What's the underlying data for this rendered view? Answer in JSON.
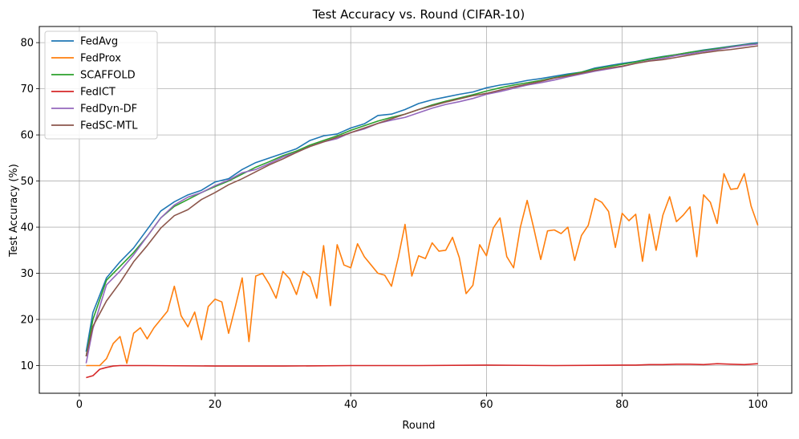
{
  "chart_data": {
    "type": "line",
    "title": "Test Accuracy vs. Round (CIFAR-10)",
    "xlabel": "Round",
    "ylabel": "Test Accuracy (%)",
    "xlim": [
      -5.9,
      105
    ],
    "ylim": [
      4.0,
      83.5
    ],
    "xticks": [
      0,
      20,
      40,
      60,
      80,
      100
    ],
    "yticks": [
      10,
      20,
      30,
      40,
      50,
      60,
      70,
      80
    ],
    "grid": true,
    "legend_position": "top-left",
    "series": [
      {
        "name": "FedAvg",
        "color": "#1f77b4",
        "x": [
          1,
          2,
          4,
          6,
          8,
          10,
          12,
          14,
          16,
          18,
          20,
          22,
          24,
          26,
          28,
          30,
          32,
          34,
          36,
          38,
          40,
          42,
          44,
          46,
          48,
          50,
          52,
          54,
          56,
          58,
          60,
          62,
          64,
          66,
          68,
          70,
          72,
          74,
          76,
          78,
          80,
          82,
          84,
          86,
          88,
          90,
          92,
          94,
          96,
          98,
          100
        ],
        "y": [
          13,
          21.5,
          29,
          32.5,
          35.5,
          39.5,
          43.5,
          45.5,
          47,
          48,
          49.8,
          50.5,
          52.5,
          54,
          55,
          56,
          57,
          58.8,
          59.8,
          60.2,
          61.5,
          62.4,
          64.2,
          64.5,
          65.5,
          66.8,
          67.6,
          68.2,
          68.8,
          69.3,
          70.2,
          70.8,
          71.2,
          71.8,
          72.2,
          72.7,
          73.2,
          73.6,
          74.5,
          75,
          75.5,
          75.9,
          76.5,
          77,
          77.4,
          77.9,
          78.4,
          78.8,
          79.2,
          79.6,
          80
        ]
      },
      {
        "name": "FedProx",
        "color": "#ff7f0e",
        "x": [
          1,
          2,
          3,
          4,
          5,
          6,
          7,
          8,
          9,
          10,
          11,
          12,
          13,
          14,
          15,
          16,
          17,
          18,
          19,
          20,
          21,
          22,
          23,
          24,
          25,
          26,
          27,
          28,
          29,
          30,
          31,
          32,
          33,
          34,
          35,
          36,
          37,
          38,
          39,
          40,
          41,
          42,
          43,
          44,
          45,
          46,
          47,
          48,
          49,
          50,
          51,
          52,
          53,
          54,
          55,
          56,
          57,
          58,
          59,
          60,
          61,
          62,
          63,
          64,
          65,
          66,
          67,
          68,
          69,
          70,
          71,
          72,
          73,
          74,
          75,
          76,
          77,
          78,
          79,
          80,
          81,
          82,
          83,
          84,
          85,
          86,
          87,
          88,
          89,
          90,
          91,
          92,
          93,
          94,
          95,
          96,
          97,
          98,
          99,
          100
        ],
        "y": [
          10,
          10,
          10,
          11.5,
          14.8,
          16.3,
          10.5,
          17,
          18.2,
          15.8,
          18.2,
          20,
          21.8,
          27.2,
          20.8,
          18.4,
          21.6,
          15.6,
          22.8,
          24.4,
          23.8,
          17,
          22.8,
          29,
          15.2,
          29.4,
          30,
          27.6,
          24.6,
          30.4,
          28.8,
          25.4,
          30.4,
          29.2,
          24.6,
          36,
          23,
          36.2,
          31.8,
          31.2,
          36.4,
          33.6,
          31.8,
          30,
          29.6,
          27.2,
          33.4,
          40.6,
          29.4,
          33.8,
          33.2,
          36.6,
          34.8,
          35,
          37.8,
          33.4,
          25.6,
          27.4,
          36.2,
          33.8,
          39.8,
          42,
          33.6,
          31.2,
          40,
          45.8,
          39.6,
          33,
          39.2,
          39.4,
          38.6,
          40,
          32.8,
          38.2,
          40.4,
          46.2,
          45.4,
          43.4,
          35.6,
          43,
          41.4,
          42.8,
          32.6,
          42.8,
          35,
          42.6,
          46.6,
          41.2,
          42.6,
          44.4,
          33.6,
          47,
          45.4,
          40.8,
          51.6,
          48.2,
          48.4,
          51.6,
          44.6,
          40.4
        ]
      },
      {
        "name": "SCAFFOLD",
        "color": "#2ca02c",
        "x": [
          1,
          2,
          4,
          6,
          8,
          10,
          12,
          14,
          16,
          18,
          20,
          22,
          24,
          26,
          28,
          30,
          32,
          34,
          36,
          38,
          40,
          42,
          44,
          46,
          48,
          50,
          52,
          54,
          56,
          58,
          60,
          62,
          64,
          66,
          68,
          70,
          72,
          74,
          76,
          78,
          80,
          82,
          84,
          86,
          88,
          90,
          92,
          94,
          96,
          98,
          100
        ],
        "y": [
          12,
          20,
          28.5,
          31.5,
          34.5,
          38,
          42,
          44.5,
          46,
          47.5,
          48.8,
          50,
          51.5,
          53,
          54.2,
          55.5,
          56.5,
          57.8,
          58.8,
          59.8,
          61,
          62,
          63,
          63.8,
          64.5,
          65.5,
          66.5,
          67.3,
          68,
          68.7,
          69.5,
          70.2,
          70.8,
          71.3,
          71.8,
          72.4,
          73,
          73.6,
          74.3,
          74.8,
          75.3,
          75.8,
          76.4,
          76.9,
          77.4,
          77.9,
          78.3,
          78.7,
          79.1,
          79.5,
          79.8
        ]
      },
      {
        "name": "FedICT",
        "color": "#d62728",
        "x": [
          1,
          2,
          3,
          4,
          5,
          6,
          8,
          10,
          20,
          30,
          40,
          50,
          60,
          70,
          80,
          82,
          84,
          86,
          88,
          90,
          92,
          94,
          96,
          98,
          100
        ],
        "y": [
          7.4,
          7.8,
          9.2,
          9.6,
          9.9,
          10,
          10,
          10,
          9.9,
          9.9,
          10,
          10,
          10.1,
          10,
          10.1,
          10.1,
          10.2,
          10.2,
          10.3,
          10.3,
          10.2,
          10.4,
          10.3,
          10.2,
          10.4
        ]
      },
      {
        "name": "FedDyn-DF",
        "color": "#9467bd",
        "x": [
          1,
          2,
          4,
          6,
          8,
          10,
          12,
          14,
          16,
          18,
          20,
          22,
          24,
          26,
          28,
          30,
          32,
          34,
          36,
          38,
          40,
          42,
          44,
          46,
          48,
          50,
          52,
          54,
          56,
          58,
          60,
          62,
          64,
          66,
          68,
          70,
          72,
          74,
          76,
          78,
          80,
          82,
          84,
          86,
          88,
          90,
          92,
          94,
          96,
          98,
          100
        ],
        "y": [
          10.5,
          18,
          27.5,
          30.5,
          34,
          38,
          42,
          44.8,
          46.5,
          47.5,
          49,
          50.2,
          51.8,
          52.5,
          53.8,
          55.2,
          56.2,
          57.5,
          58.5,
          59.2,
          60.5,
          61.3,
          62.5,
          63.2,
          63.8,
          64.8,
          65.8,
          66.6,
          67.2,
          67.9,
          68.8,
          69.4,
          70.1,
          70.8,
          71.3,
          71.9,
          72.6,
          73.2,
          73.8,
          74.3,
          74.8,
          75.5,
          76.1,
          76.6,
          77.2,
          77.6,
          78.1,
          78.5,
          79,
          79.4,
          79.7
        ]
      },
      {
        "name": "FedSC-MTL",
        "color": "#8c564b",
        "x": [
          1,
          2,
          4,
          6,
          8,
          10,
          12,
          14,
          16,
          18,
          20,
          22,
          24,
          26,
          28,
          30,
          32,
          34,
          36,
          38,
          40,
          42,
          44,
          46,
          48,
          50,
          52,
          54,
          56,
          58,
          60,
          62,
          64,
          66,
          68,
          70,
          72,
          74,
          76,
          78,
          80,
          82,
          84,
          86,
          88,
          90,
          92,
          94,
          96,
          98,
          100
        ],
        "y": [
          12,
          18.5,
          24,
          28,
          32.5,
          36,
          39.8,
          42.5,
          43.8,
          46,
          47.5,
          49.2,
          50.5,
          52,
          53.5,
          54.8,
          56.2,
          57.5,
          58.5,
          59.5,
          60.5,
          61.5,
          62.5,
          63.5,
          64.5,
          65.5,
          66.3,
          67.1,
          67.8,
          68.5,
          69,
          69.7,
          70.4,
          71,
          71.6,
          72.3,
          72.8,
          73.4,
          74,
          74.5,
          74.9,
          75.5,
          76,
          76.3,
          76.8,
          77.3,
          77.8,
          78.2,
          78.5,
          78.9,
          79.3
        ]
      }
    ]
  }
}
